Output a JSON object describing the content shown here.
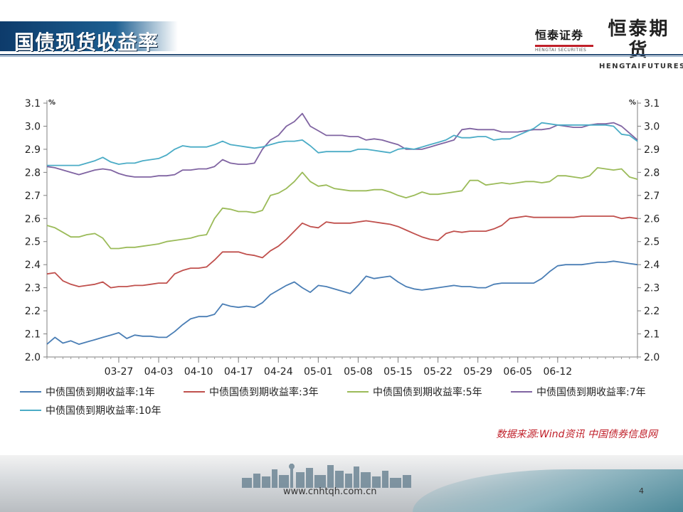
{
  "slide": {
    "title": "国债现货收益率",
    "logo_securities_cn": "恒泰证券",
    "logo_securities_en": "HENGTAI SECURITIES",
    "logo_futures_cn": "恒泰期货",
    "logo_futures_en": "HENGTAIFUTURES",
    "source": "数据来源:Wind资讯 中国债券信息网",
    "footer_url": "www.cnhtqh.com.cn",
    "page_number": "4",
    "accent_color": "#c0202a",
    "title_bar_color": "#1d5f91"
  },
  "chart_data": {
    "type": "line",
    "title": "",
    "xlabel": "",
    "ylabel": "%",
    "ylabel_right": "%",
    "ylim": [
      2.0,
      3.1
    ],
    "yticks": [
      "2.0",
      "2.1",
      "2.2",
      "2.3",
      "2.4",
      "2.5",
      "2.6",
      "2.7",
      "2.8",
      "2.9",
      "3.0",
      "3.1"
    ],
    "x_count": 75,
    "xticks": [
      {
        "index": 9,
        "label": "03-27"
      },
      {
        "index": 14,
        "label": "04-03"
      },
      {
        "index": 19,
        "label": "04-10"
      },
      {
        "index": 24,
        "label": "04-17"
      },
      {
        "index": 29,
        "label": "04-24"
      },
      {
        "index": 34,
        "label": "05-01"
      },
      {
        "index": 39,
        "label": "05-08"
      },
      {
        "index": 44,
        "label": "05-15"
      },
      {
        "index": 49,
        "label": "05-22"
      },
      {
        "index": 54,
        "label": "05-29"
      },
      {
        "index": 59,
        "label": "06-05"
      },
      {
        "index": 64,
        "label": "06-12"
      }
    ],
    "grid": false,
    "legend_position": "bottom",
    "series": [
      {
        "name": "中债国债到期收益率:1年",
        "color": "#4a7eb5",
        "values": [
          2.055,
          2.085,
          2.06,
          2.07,
          2.055,
          2.065,
          2.075,
          2.085,
          2.095,
          2.105,
          2.08,
          2.095,
          2.09,
          2.09,
          2.085,
          2.085,
          2.11,
          2.14,
          2.165,
          2.175,
          2.175,
          2.185,
          2.23,
          2.22,
          2.215,
          2.22,
          2.215,
          2.235,
          2.27,
          2.29,
          2.31,
          2.325,
          2.3,
          2.28,
          2.31,
          2.305,
          2.295,
          2.285,
          2.275,
          2.31,
          2.35,
          2.34,
          2.345,
          2.35,
          2.325,
          2.305,
          2.295,
          2.29,
          2.295,
          2.3,
          2.305,
          2.31,
          2.305,
          2.305,
          2.3,
          2.3,
          2.315,
          2.32,
          2.32,
          2.32,
          2.32,
          2.32,
          2.34,
          2.37,
          2.395,
          2.4,
          2.4,
          2.4,
          2.405,
          2.41,
          2.41,
          2.415,
          2.41,
          2.405,
          2.4
        ]
      },
      {
        "name": "中债国债到期收益率:3年",
        "color": "#c0504d",
        "values": [
          2.36,
          2.365,
          2.33,
          2.315,
          2.305,
          2.31,
          2.315,
          2.325,
          2.3,
          2.305,
          2.305,
          2.31,
          2.31,
          2.315,
          2.32,
          2.32,
          2.36,
          2.375,
          2.385,
          2.385,
          2.39,
          2.42,
          2.455,
          2.455,
          2.455,
          2.445,
          2.44,
          2.43,
          2.46,
          2.48,
          2.51,
          2.545,
          2.58,
          2.565,
          2.56,
          2.585,
          2.58,
          2.58,
          2.58,
          2.585,
          2.59,
          2.585,
          2.58,
          2.575,
          2.565,
          2.55,
          2.535,
          2.52,
          2.51,
          2.505,
          2.535,
          2.545,
          2.54,
          2.545,
          2.545,
          2.545,
          2.555,
          2.57,
          2.6,
          2.605,
          2.61,
          2.605,
          2.605,
          2.605,
          2.605,
          2.605,
          2.605,
          2.61,
          2.61,
          2.61,
          2.61,
          2.61,
          2.6,
          2.605,
          2.6
        ]
      },
      {
        "name": "中债国债到期收益率:5年",
        "color": "#9bbb59",
        "values": [
          2.57,
          2.56,
          2.54,
          2.52,
          2.52,
          2.53,
          2.535,
          2.515,
          2.47,
          2.47,
          2.475,
          2.475,
          2.48,
          2.485,
          2.49,
          2.5,
          2.505,
          2.51,
          2.515,
          2.525,
          2.53,
          2.6,
          2.645,
          2.64,
          2.63,
          2.63,
          2.625,
          2.635,
          2.7,
          2.71,
          2.73,
          2.76,
          2.8,
          2.76,
          2.74,
          2.745,
          2.73,
          2.725,
          2.72,
          2.72,
          2.72,
          2.725,
          2.725,
          2.715,
          2.7,
          2.69,
          2.7,
          2.715,
          2.705,
          2.705,
          2.71,
          2.715,
          2.72,
          2.765,
          2.765,
          2.745,
          2.75,
          2.755,
          2.75,
          2.755,
          2.76,
          2.76,
          2.755,
          2.76,
          2.785,
          2.785,
          2.78,
          2.775,
          2.785,
          2.82,
          2.815,
          2.81,
          2.815,
          2.78,
          2.77
        ]
      },
      {
        "name": "中债国债到期收益率:7年",
        "color": "#8064a2",
        "values": [
          2.825,
          2.82,
          2.81,
          2.8,
          2.79,
          2.8,
          2.81,
          2.815,
          2.81,
          2.795,
          2.785,
          2.78,
          2.78,
          2.78,
          2.785,
          2.785,
          2.79,
          2.81,
          2.81,
          2.815,
          2.815,
          2.825,
          2.855,
          2.84,
          2.835,
          2.835,
          2.84,
          2.9,
          2.94,
          2.96,
          3.0,
          3.02,
          3.055,
          3.0,
          2.98,
          2.96,
          2.96,
          2.96,
          2.955,
          2.955,
          2.94,
          2.945,
          2.94,
          2.93,
          2.92,
          2.9,
          2.9,
          2.9,
          2.91,
          2.92,
          2.93,
          2.94,
          2.985,
          2.99,
          2.985,
          2.985,
          2.985,
          2.975,
          2.975,
          2.975,
          2.98,
          2.985,
          2.985,
          2.99,
          3.005,
          3.0,
          2.995,
          2.995,
          3.005,
          3.01,
          3.01,
          3.015,
          3.0,
          2.97,
          2.94
        ]
      },
      {
        "name": "中债国债到期收益率:10年",
        "color": "#4bacc6",
        "values": [
          2.83,
          2.83,
          2.83,
          2.83,
          2.83,
          2.84,
          2.85,
          2.865,
          2.845,
          2.835,
          2.84,
          2.84,
          2.85,
          2.855,
          2.86,
          2.875,
          2.9,
          2.915,
          2.91,
          2.91,
          2.91,
          2.92,
          2.935,
          2.92,
          2.915,
          2.91,
          2.905,
          2.91,
          2.92,
          2.93,
          2.935,
          2.935,
          2.94,
          2.915,
          2.885,
          2.89,
          2.89,
          2.89,
          2.89,
          2.9,
          2.9,
          2.895,
          2.89,
          2.885,
          2.9,
          2.905,
          2.9,
          2.91,
          2.92,
          2.93,
          2.94,
          2.96,
          2.95,
          2.95,
          2.955,
          2.955,
          2.94,
          2.945,
          2.945,
          2.96,
          2.975,
          2.99,
          3.015,
          3.01,
          3.005,
          3.005,
          3.005,
          3.005,
          3.005,
          3.005,
          3.005,
          3.0,
          2.965,
          2.96,
          2.935
        ]
      }
    ]
  }
}
